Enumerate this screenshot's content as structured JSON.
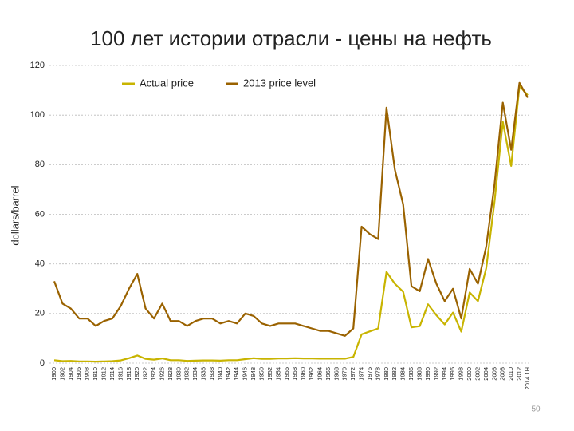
{
  "chart_data": {
    "type": "line",
    "title": "100 лет истории отрасли - цены на нефть",
    "y_label": "dollars/barrel",
    "categories": [
      "1900",
      "1902",
      "1904",
      "1906",
      "1908",
      "1910",
      "1912",
      "1914",
      "1916",
      "1918",
      "1920",
      "1922",
      "1924",
      "1926",
      "1928",
      "1930",
      "1932",
      "1934",
      "1936",
      "1938",
      "1940",
      "1942",
      "1944",
      "1946",
      "1948",
      "1950",
      "1952",
      "1954",
      "1956",
      "1958",
      "1960",
      "1962",
      "1964",
      "1966",
      "1968",
      "1970",
      "1972",
      "1974",
      "1976",
      "1978",
      "1980",
      "1982",
      "1984",
      "1986",
      "1988",
      "1990",
      "1992",
      "1994",
      "1996",
      "1998",
      "2000",
      "2002",
      "2004",
      "2006",
      "2008",
      "2010",
      "2012",
      "2014 1H"
    ],
    "series": [
      {
        "name": "Actual price",
        "color": "#c8b400",
        "values": [
          1.2,
          0.8,
          0.9,
          0.7,
          0.7,
          0.6,
          0.7,
          0.8,
          1.1,
          2.0,
          3.1,
          1.7,
          1.4,
          1.9,
          1.2,
          1.2,
          0.9,
          1.0,
          1.1,
          1.1,
          1.0,
          1.2,
          1.2,
          1.6,
          2.0,
          1.7,
          1.7,
          1.9,
          1.9,
          2.0,
          1.9,
          1.9,
          1.8,
          1.8,
          1.8,
          1.8,
          2.5,
          11.6,
          12.8,
          14.0,
          36.8,
          32.0,
          28.8,
          14.4,
          14.9,
          23.7,
          19.3,
          15.6,
          20.4,
          12.7,
          28.5,
          25.0,
          38.3,
          65.1,
          97.3,
          79.5,
          111.7,
          108
        ]
      },
      {
        "name": "2013 price level",
        "color": "#9a6200",
        "values": [
          33,
          24,
          22,
          18,
          18,
          15,
          17,
          18,
          23,
          30,
          36,
          22,
          18,
          24,
          17,
          17,
          15,
          17,
          18,
          18,
          16,
          17,
          16,
          20,
          19,
          16,
          15,
          16,
          16,
          16,
          15,
          14,
          13,
          13,
          12,
          11,
          14,
          55,
          52,
          50,
          103,
          78,
          64,
          31,
          29,
          42,
          32,
          25,
          30,
          18,
          38,
          32,
          47,
          72,
          105,
          86,
          113,
          107
        ]
      }
    ],
    "ylim": [
      0,
      120
    ],
    "yticks": [
      0,
      20,
      40,
      60,
      80,
      100,
      120
    ],
    "grid": true,
    "legend": "top-left"
  },
  "slide_number": "50"
}
